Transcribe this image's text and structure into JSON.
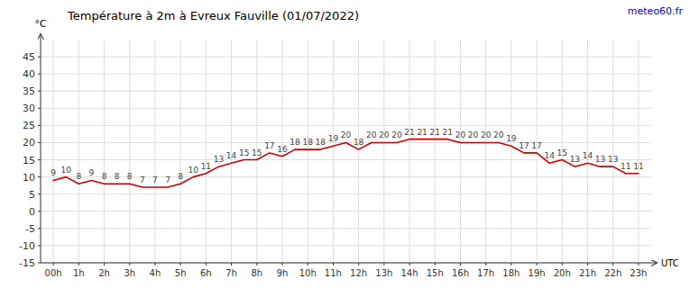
{
  "chart_data": {
    "type": "line",
    "title": "Température à 2m à Evreux Fauville (01/07/2022)",
    "y_label": "°C",
    "x_label": "UTC",
    "annotations": [
      "meteo60.fr"
    ],
    "x": [
      0,
      0.5,
      1,
      1.5,
      2,
      2.5,
      3,
      3.5,
      4,
      4.5,
      5,
      5.5,
      6,
      6.5,
      7,
      7.5,
      8,
      8.5,
      9,
      9.5,
      10,
      10.5,
      11,
      11.5,
      12,
      12.5,
      13,
      13.5,
      14,
      14.5,
      15,
      15.5,
      16,
      16.5,
      17,
      17.5,
      18,
      18.5,
      19,
      19.5,
      20,
      20.5,
      21,
      21.5,
      22,
      22.5,
      23
    ],
    "values": [
      9,
      10,
      8,
      9,
      8,
      8,
      8,
      7,
      7,
      7,
      8,
      10,
      11,
      13,
      14,
      15,
      15,
      17,
      16,
      18,
      18,
      18,
      19,
      20,
      18,
      20,
      20,
      20,
      21,
      21,
      21,
      21,
      20,
      20,
      20,
      20,
      19,
      17,
      17,
      14,
      15,
      13,
      14,
      13,
      13,
      11,
      11
    ],
    "color": "#cc0000",
    "xlim": [
      -0.5,
      23.5
    ],
    "xticks": [
      {
        "value": 0,
        "label": "00h"
      },
      {
        "value": 1,
        "label": "1h"
      },
      {
        "value": 2,
        "label": "2h"
      },
      {
        "value": 3,
        "label": "3h"
      },
      {
        "value": 4,
        "label": "4h"
      },
      {
        "value": 5,
        "label": "5h"
      },
      {
        "value": 6,
        "label": "6h"
      },
      {
        "value": 7,
        "label": "7h"
      },
      {
        "value": 8,
        "label": "8h"
      },
      {
        "value": 9,
        "label": "9h"
      },
      {
        "value": 10,
        "label": "10h"
      },
      {
        "value": 11,
        "label": "11h"
      },
      {
        "value": 12,
        "label": "12h"
      },
      {
        "value": 13,
        "label": "13h"
      },
      {
        "value": 14,
        "label": "14h"
      },
      {
        "value": 15,
        "label": "15h"
      },
      {
        "value": 16,
        "label": "16h"
      },
      {
        "value": 17,
        "label": "17h"
      },
      {
        "value": 18,
        "label": "18h"
      },
      {
        "value": 19,
        "label": "19h"
      },
      {
        "value": 20,
        "label": "20h"
      },
      {
        "value": 21,
        "label": "21h"
      },
      {
        "value": 22,
        "label": "22h"
      },
      {
        "value": 23,
        "label": "23h"
      }
    ],
    "ylim": [
      -15,
      50
    ],
    "yticks": [
      -15,
      -10,
      -5,
      0,
      5,
      10,
      15,
      20,
      25,
      30,
      35,
      40,
      45
    ],
    "grid": true,
    "data_labels": true
  }
}
